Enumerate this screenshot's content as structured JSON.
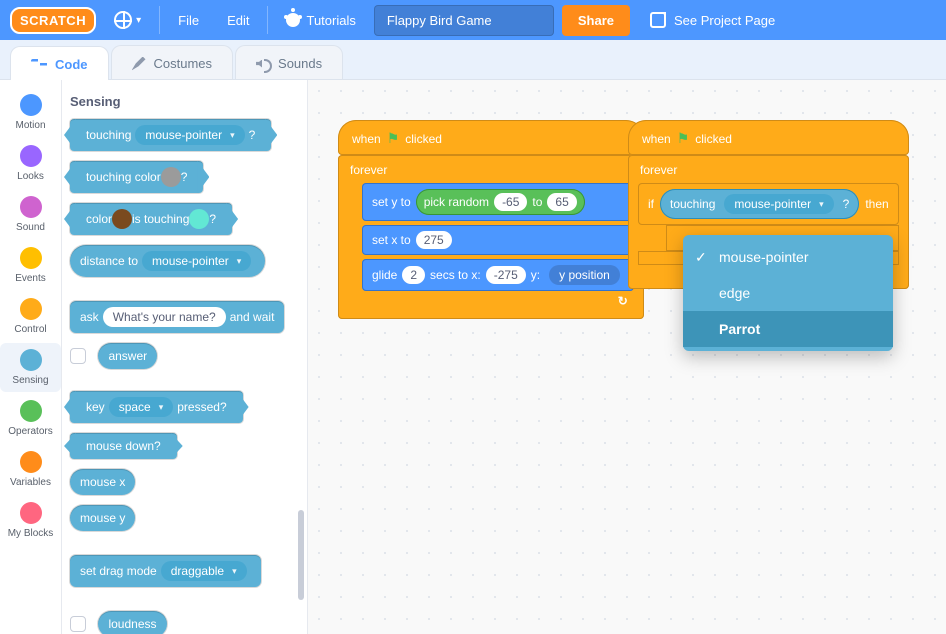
{
  "menubar": {
    "logo": "SCRATCH",
    "file": "File",
    "edit": "Edit",
    "tutorials": "Tutorials",
    "project_title": "Flappy Bird Game",
    "share": "Share",
    "see_project": "See Project Page"
  },
  "tabs": {
    "code": "Code",
    "costumes": "Costumes",
    "sounds": "Sounds"
  },
  "categories": [
    {
      "name": "Motion",
      "color": "#4c97ff"
    },
    {
      "name": "Looks",
      "color": "#9966ff"
    },
    {
      "name": "Sound",
      "color": "#cf63cf"
    },
    {
      "name": "Events",
      "color": "#ffbf00"
    },
    {
      "name": "Control",
      "color": "#ffab19"
    },
    {
      "name": "Sensing",
      "color": "#5cb1d6"
    },
    {
      "name": "Operators",
      "color": "#59c059"
    },
    {
      "name": "Variables",
      "color": "#ff8c1a"
    },
    {
      "name": "My Blocks",
      "color": "#ff6680"
    }
  ],
  "active_category": "Sensing",
  "palette_title": "Sensing",
  "palette": {
    "touching": "touching",
    "mouse_pointer": "mouse-pointer",
    "question_mark": "?",
    "touching_color": "touching color",
    "color": "color",
    "is_touching": "is touching",
    "distance_to": "distance to",
    "ask": "ask",
    "ask_value": "What's your name?",
    "and_wait": "and wait",
    "answer": "answer",
    "key": "key",
    "space": "space",
    "pressed": "pressed?",
    "mouse_down": "mouse down?",
    "mouse_x": "mouse x",
    "mouse_y": "mouse y",
    "set_drag_mode": "set drag mode",
    "draggable": "draggable",
    "loudness": "loudness",
    "color1": "#9b9b9b",
    "color2": "#7a4a1f",
    "color3": "#62e8d4"
  },
  "script1": {
    "when": "when",
    "clicked": "clicked",
    "forever": "forever",
    "set_y_to": "set y to",
    "pick_random": "pick random",
    "rand_a": "-65",
    "to": "to",
    "rand_b": "65",
    "set_x_to": "set x to",
    "x_val": "275",
    "glide": "glide",
    "glide_secs": "2",
    "secs_to_x": "secs to x:",
    "glide_x": "-275",
    "y_label": "y:",
    "y_position": "y position"
  },
  "script2": {
    "when": "when",
    "clicked": "clicked",
    "forever": "forever",
    "if": "if",
    "touching": "touching",
    "mouse_pointer": "mouse-pointer",
    "question_mark": "?",
    "then": "then"
  },
  "dropdown": {
    "options": [
      "mouse-pointer",
      "edge",
      "Parrot"
    ],
    "checked": "mouse-pointer",
    "selected": "Parrot"
  },
  "colors": {
    "sensing": "#5cb1d6",
    "motion": "#4c97ff",
    "control": "#ffab19",
    "operators": "#59c059"
  }
}
